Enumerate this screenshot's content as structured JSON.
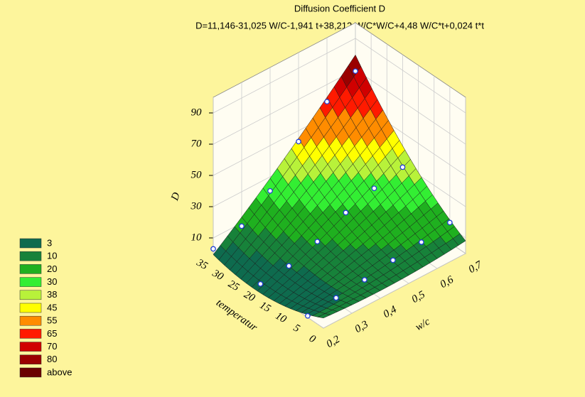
{
  "chart_data": {
    "type": "surface3d",
    "title": "Diffusion Coefficient D",
    "subtitle": "D=11,146-31,025 W/C-1,941 t+38,212 W/C*W/C+4,48 W/C*t+0,024 t*t",
    "coefficients": [
      11.146,
      -31.025,
      -1.941,
      38.212,
      4.48,
      0.024
    ],
    "xlabel": "w/c",
    "ylabel": "temperatur",
    "zlabel": "D",
    "xlim": [
      0.2,
      0.7
    ],
    "xticks": [
      {
        "value": 0.2,
        "label": "0,2"
      },
      {
        "value": 0.3,
        "label": "0,3"
      },
      {
        "value": 0.4,
        "label": "0,4"
      },
      {
        "value": 0.5,
        "label": "0,5"
      },
      {
        "value": 0.6,
        "label": "0,6"
      },
      {
        "value": 0.7,
        "label": "0,7"
      }
    ],
    "ylim": [
      0,
      35
    ],
    "yticks": [
      0,
      5,
      10,
      15,
      20,
      25,
      30,
      35
    ],
    "zlim": [
      0,
      100
    ],
    "zticks": [
      10,
      30,
      50,
      70,
      90
    ],
    "points": {
      "wc": [
        0.2,
        0.3,
        0.4,
        0.5,
        0.6,
        0.7,
        0.2,
        0.3,
        0.4,
        0.5,
        0.6,
        0.7,
        0.2,
        0.3,
        0.4,
        0.5,
        0.6,
        0.7
      ],
      "t": [
        5,
        5,
        5,
        5,
        5,
        5,
        20,
        20,
        20,
        20,
        20,
        20,
        35,
        35,
        35,
        35,
        35,
        35
      ],
      "D": [
        1,
        3,
        5,
        8,
        10,
        13,
        1,
        3,
        9,
        18,
        24,
        28,
        3,
        8,
        21,
        43,
        59,
        69
      ]
    },
    "legend": {
      "levels": [
        3,
        10,
        20,
        30,
        38,
        45,
        55,
        65,
        70,
        80
      ],
      "colors": [
        "#0e6b4e",
        "#17823a",
        "#1fb01f",
        "#33ee33",
        "#b8f23a",
        "#ffff00",
        "#ff8c00",
        "#ff1a00",
        "#d00000",
        "#9a0000",
        "#6a0000"
      ],
      "above_label": "above"
    }
  }
}
